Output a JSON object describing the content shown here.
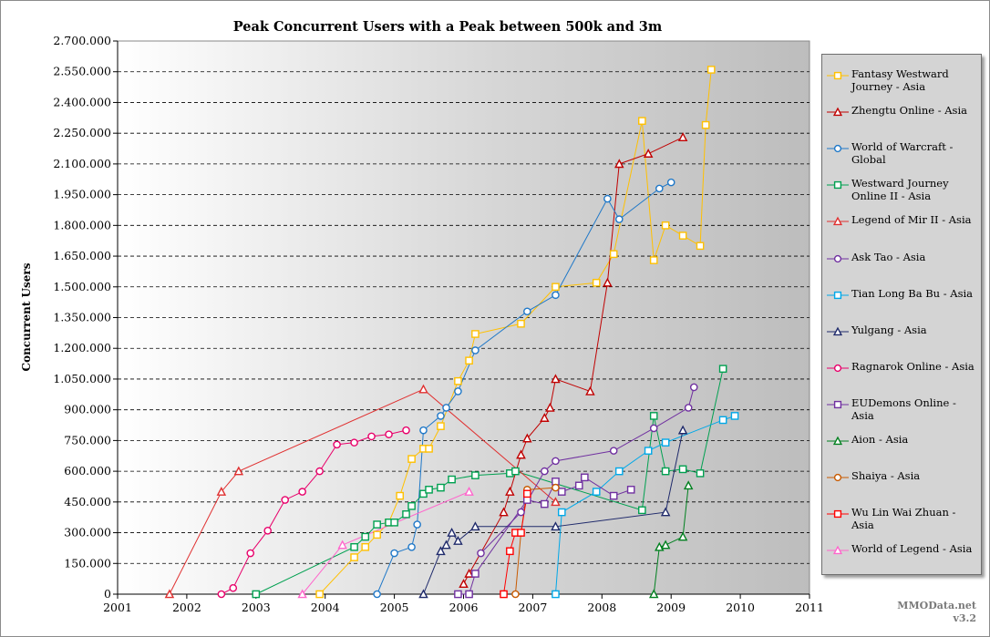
{
  "chart_data": {
    "type": "line",
    "title": "Peak Concurrent Users with a Peak between 500k and 3m",
    "ylabel": "Concurrent Users",
    "xlabel": "",
    "xlim": [
      2001,
      2011
    ],
    "ylim": [
      0,
      2700000
    ],
    "x_ticks": [
      "2001",
      "2002",
      "2003",
      "2004",
      "2005",
      "2006",
      "2007",
      "2008",
      "2009",
      "2010",
      "2011"
    ],
    "y_ticks": [
      "0",
      "150.000",
      "300.000",
      "450.000",
      "600.000",
      "750.000",
      "900.000",
      "1.050.000",
      "1.200.000",
      "1.350.000",
      "1.500.000",
      "1.650.000",
      "1.800.000",
      "1.950.000",
      "2.100.000",
      "2.250.000",
      "2.400.000",
      "2.550.000",
      "2.700.000"
    ],
    "grid": "horizontal dashed",
    "legend_position": "right",
    "series": [
      {
        "name": "Fantasy Westward Journey - Asia",
        "color": "#ffc000",
        "marker": "square",
        "points": [
          [
            2003.92,
            0
          ],
          [
            2004.42,
            180000
          ],
          [
            2004.58,
            230000
          ],
          [
            2004.75,
            290000
          ],
          [
            2004.92,
            350000
          ],
          [
            2005.08,
            480000
          ],
          [
            2005.25,
            660000
          ],
          [
            2005.42,
            710000
          ],
          [
            2005.5,
            710000
          ],
          [
            2005.67,
            820000
          ],
          [
            2005.92,
            1040000
          ],
          [
            2006.08,
            1140000
          ],
          [
            2006.17,
            1270000
          ],
          [
            2006.83,
            1320000
          ],
          [
            2007.33,
            1500000
          ],
          [
            2007.92,
            1520000
          ],
          [
            2008.17,
            1660000
          ],
          [
            2008.58,
            2310000
          ],
          [
            2008.75,
            1630000
          ],
          [
            2008.92,
            1800000
          ],
          [
            2009.17,
            1750000
          ],
          [
            2009.42,
            1700000
          ],
          [
            2009.5,
            2290000
          ],
          [
            2009.58,
            2560000
          ]
        ]
      },
      {
        "name": "Zhengtu Online - Asia",
        "color": "#c00000",
        "marker": "triangle",
        "points": [
          [
            2006.83,
            680000
          ],
          [
            2006.92,
            760000
          ],
          [
            2007.17,
            860000
          ],
          [
            2007.25,
            910000
          ],
          [
            2007.33,
            1050000
          ],
          [
            2007.83,
            990000
          ],
          [
            2008.08,
            1520000
          ],
          [
            2008.25,
            2100000
          ],
          [
            2008.67,
            2150000
          ],
          [
            2009.17,
            2230000
          ]
        ]
      },
      {
        "name": "World of Warcraft - Global",
        "color": "#1f78c8",
        "marker": "circle",
        "points": [
          [
            2004.75,
            0
          ],
          [
            2005.0,
            200000
          ],
          [
            2005.25,
            230000
          ],
          [
            2005.33,
            340000
          ],
          [
            2005.42,
            800000
          ],
          [
            2005.67,
            870000
          ],
          [
            2005.75,
            910000
          ],
          [
            2005.92,
            990000
          ],
          [
            2006.17,
            1190000
          ],
          [
            2006.92,
            1380000
          ],
          [
            2007.33,
            1460000
          ],
          [
            2008.08,
            1930000
          ],
          [
            2008.25,
            1830000
          ],
          [
            2008.83,
            1980000
          ],
          [
            2009.0,
            2010000
          ]
        ]
      },
      {
        "name": "Westward Journey Online II - Asia",
        "color": "#00a050",
        "marker": "square",
        "points": [
          [
            2003.0,
            0
          ],
          [
            2004.42,
            230000
          ],
          [
            2004.58,
            280000
          ],
          [
            2004.75,
            340000
          ],
          [
            2004.92,
            350000
          ],
          [
            2005.0,
            350000
          ],
          [
            2005.17,
            390000
          ],
          [
            2005.25,
            430000
          ],
          [
            2005.42,
            490000
          ],
          [
            2005.5,
            510000
          ],
          [
            2005.67,
            520000
          ],
          [
            2005.83,
            560000
          ],
          [
            2006.17,
            580000
          ],
          [
            2006.67,
            590000
          ],
          [
            2006.75,
            600000
          ],
          [
            2008.58,
            410000
          ],
          [
            2008.75,
            870000
          ],
          [
            2008.92,
            600000
          ],
          [
            2009.17,
            610000
          ],
          [
            2009.42,
            590000
          ],
          [
            2009.75,
            1100000
          ]
        ]
      },
      {
        "name": "Legend of Mir II - Asia",
        "color": "#e03030",
        "marker": "triangle",
        "points": [
          [
            2001.75,
            0
          ],
          [
            2002.5,
            500000
          ],
          [
            2002.75,
            600000
          ],
          [
            2005.42,
            1000000
          ],
          [
            2007.33,
            450000
          ]
        ]
      },
      {
        "name": "Ask Tao - Asia",
        "color": "#7030a0",
        "marker": "circle",
        "points": [
          [
            2006.25,
            200000
          ],
          [
            2006.83,
            400000
          ],
          [
            2007.17,
            600000
          ],
          [
            2007.33,
            650000
          ],
          [
            2008.17,
            700000
          ],
          [
            2008.75,
            810000
          ],
          [
            2009.25,
            910000
          ],
          [
            2009.33,
            1010000
          ]
        ]
      },
      {
        "name": "Tian Long Ba Bu - Asia",
        "color": "#00a8e8",
        "marker": "square",
        "points": [
          [
            2007.33,
            0
          ],
          [
            2007.42,
            400000
          ],
          [
            2007.92,
            500000
          ],
          [
            2008.25,
            600000
          ],
          [
            2008.67,
            700000
          ],
          [
            2008.92,
            740000
          ],
          [
            2009.75,
            850000
          ],
          [
            2009.92,
            870000
          ]
        ]
      },
      {
        "name": "Yulgang - Asia",
        "color": "#1f2a6b",
        "marker": "triangle",
        "points": [
          [
            2005.42,
            0
          ],
          [
            2005.67,
            210000
          ],
          [
            2005.75,
            240000
          ],
          [
            2005.83,
            300000
          ],
          [
            2005.92,
            260000
          ],
          [
            2006.17,
            330000
          ],
          [
            2007.33,
            330000
          ],
          [
            2008.92,
            400000
          ],
          [
            2009.17,
            800000
          ]
        ]
      },
      {
        "name": "Ragnarok Online - Asia",
        "color": "#e8006a",
        "marker": "circle",
        "points": [
          [
            2002.5,
            0
          ],
          [
            2002.67,
            30000
          ],
          [
            2002.92,
            200000
          ],
          [
            2003.17,
            310000
          ],
          [
            2003.42,
            460000
          ],
          [
            2003.67,
            500000
          ],
          [
            2003.92,
            600000
          ],
          [
            2004.17,
            730000
          ],
          [
            2004.42,
            740000
          ],
          [
            2004.67,
            770000
          ],
          [
            2004.92,
            780000
          ],
          [
            2005.17,
            800000
          ]
        ]
      },
      {
        "name": "EUDemons Online - Asia",
        "color": "#7030a0",
        "marker": "square",
        "points": [
          [
            2005.92,
            0
          ],
          [
            2006.08,
            0
          ],
          [
            2006.17,
            100000
          ],
          [
            2006.92,
            460000
          ],
          [
            2007.17,
            440000
          ],
          [
            2007.33,
            550000
          ],
          [
            2007.42,
            500000
          ],
          [
            2007.67,
            530000
          ],
          [
            2007.75,
            570000
          ],
          [
            2008.17,
            480000
          ],
          [
            2008.42,
            510000
          ]
        ]
      },
      {
        "name": "Aion - Asia",
        "color": "#00801f",
        "marker": "triangle",
        "points": [
          [
            2008.75,
            0
          ],
          [
            2008.83,
            230000
          ],
          [
            2008.92,
            240000
          ],
          [
            2009.17,
            280000
          ],
          [
            2009.25,
            530000
          ]
        ]
      },
      {
        "name": "Shaiya - Asia",
        "color": "#c85a00",
        "marker": "circle",
        "points": [
          [
            2006.75,
            0
          ],
          [
            2006.83,
            300000
          ],
          [
            2006.92,
            510000
          ],
          [
            2007.33,
            520000
          ]
        ]
      },
      {
        "name": "Wu Lin Wai Zhuan - Asia",
        "color": "#ff0000",
        "marker": "square",
        "points": [
          [
            2006.58,
            0
          ],
          [
            2006.67,
            210000
          ],
          [
            2006.75,
            300000
          ],
          [
            2006.83,
            300000
          ],
          [
            2006.92,
            490000
          ]
        ]
      },
      {
        "name": "World of Legend - Asia",
        "color": "#ff66cc",
        "marker": "triangle",
        "points": [
          [
            2003.67,
            0
          ],
          [
            2004.25,
            240000
          ],
          [
            2006.08,
            500000
          ]
        ]
      }
    ],
    "extra_segments": [
      {
        "series": "Zhengtu Online - Asia",
        "color": "#c00000",
        "points": [
          [
            2006.0,
            50000
          ],
          [
            2006.08,
            100000
          ],
          [
            2006.58,
            400000
          ],
          [
            2006.67,
            500000
          ],
          [
            2006.83,
            680000
          ]
        ]
      }
    ]
  },
  "watermark": {
    "line1": "MMOData.net",
    "line2": "v3.2"
  }
}
